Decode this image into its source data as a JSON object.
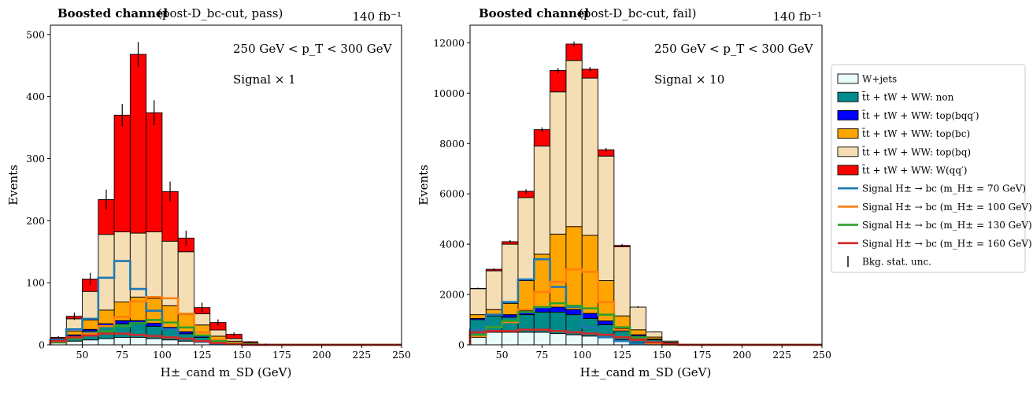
{
  "figure": {
    "colors": {
      "wjets": "#e9fbfb",
      "non": "#008b8b",
      "bqq": "#0000ff",
      "bc": "#ffa500",
      "bq": "#f5deb3",
      "wqq": "#ff0000",
      "sig70": "#1f77b4",
      "sig100": "#ff7f0e",
      "sig130": "#2ca02c",
      "sig160": "#d62728"
    },
    "legend": [
      {
        "key": "wjets",
        "label": "W+jets",
        "kind": "patch"
      },
      {
        "key": "non",
        "label": "t̄t + tW + WW: non",
        "kind": "patch"
      },
      {
        "key": "bqq",
        "label": "t̄t + tW + WW: top(bqq′)",
        "kind": "patch"
      },
      {
        "key": "bc",
        "label": "t̄t + tW + WW: top(bc)",
        "kind": "patch"
      },
      {
        "key": "bq",
        "label": "t̄t + tW + WW: top(bq)",
        "kind": "patch"
      },
      {
        "key": "wqq",
        "label": "t̄t + tW + WW: W(qq′)",
        "kind": "patch"
      },
      {
        "key": "sig70",
        "label": "Signal H± → bc (m_H± = 70 GeV)",
        "kind": "line"
      },
      {
        "key": "sig100",
        "label": "Signal H± → bc (m_H± = 100 GeV)",
        "kind": "line"
      },
      {
        "key": "sig130",
        "label": "Signal H± → bc (m_H± = 130 GeV)",
        "kind": "line"
      },
      {
        "key": "sig160",
        "label": "Signal H± → bc (m_H± = 160 GeV)",
        "kind": "line"
      },
      {
        "key": "unc",
        "label": "Bkg. stat. unc.",
        "kind": "errbar"
      }
    ]
  },
  "chart_data": [
    {
      "type": "bar",
      "stacked": true,
      "title_bold": "Boosted channel",
      "title_rest": "(post-D_bc-cut, pass)",
      "lumi": "140 fb⁻¹",
      "annotation_pt": "250 GeV < p_T < 300 GeV",
      "annotation_signal": "Signal × 1",
      "xlabel": "H±_cand m_SD (GeV)",
      "ylabel": "Events",
      "xlim": [
        30,
        250
      ],
      "ylim": [
        0,
        515
      ],
      "xticks": [
        50,
        75,
        100,
        125,
        150,
        175,
        200,
        225,
        250
      ],
      "yticks": [
        0,
        100,
        200,
        300,
        400,
        500
      ],
      "bin_edges": [
        30,
        40,
        50,
        60,
        70,
        80,
        90,
        100,
        110,
        120,
        130,
        140,
        150,
        160,
        170,
        180,
        190,
        200,
        210,
        220,
        230,
        240,
        250
      ],
      "background": [
        {
          "key": "wjets",
          "values": [
            3,
            6,
            8,
            10,
            12,
            12,
            10,
            8,
            6,
            4,
            2,
            1,
            0,
            0,
            0,
            0,
            0,
            0,
            0,
            0,
            0,
            0
          ]
        },
        {
          "key": "non",
          "values": [
            3,
            8,
            14,
            20,
            22,
            22,
            20,
            16,
            12,
            8,
            4,
            2,
            1,
            0,
            0,
            0,
            0,
            0,
            0,
            0,
            0,
            0
          ]
        },
        {
          "key": "bqq",
          "values": [
            1,
            2,
            3,
            4,
            5,
            5,
            5,
            4,
            3,
            2,
            1,
            0,
            0,
            0,
            0,
            0,
            0,
            0,
            0,
            0,
            0,
            0
          ]
        },
        {
          "key": "bc",
          "values": [
            1,
            6,
            15,
            22,
            30,
            38,
            40,
            35,
            28,
            18,
            7,
            3,
            1,
            0,
            0,
            0,
            0,
            0,
            0,
            0,
            0,
            0
          ]
        },
        {
          "key": "bq",
          "values": [
            2,
            20,
            46,
            122,
            113,
            103,
            107,
            104,
            101,
            18,
            10,
            4,
            1,
            0,
            0,
            0,
            0,
            0,
            0,
            0,
            0,
            0
          ]
        },
        {
          "key": "wqq",
          "values": [
            2,
            4,
            20,
            56,
            188,
            288,
            192,
            80,
            22,
            10,
            12,
            7,
            2,
            1,
            0,
            0,
            0,
            0,
            0,
            0,
            0,
            0
          ]
        }
      ],
      "errors": [
        2,
        6,
        10,
        16,
        18,
        20,
        20,
        16,
        12,
        8,
        5,
        3,
        1,
        1,
        0,
        0,
        0,
        0,
        0,
        0,
        0,
        0
      ],
      "signals": [
        {
          "key": "sig70",
          "values": [
            8,
            25,
            42,
            108,
            135,
            90,
            55,
            25,
            10,
            5,
            2,
            1,
            0,
            0,
            0,
            0,
            0,
            0,
            0,
            0,
            0,
            0
          ]
        },
        {
          "key": "sig100",
          "values": [
            4,
            12,
            18,
            30,
            45,
            70,
            77,
            75,
            50,
            20,
            8,
            3,
            1,
            0,
            0,
            0,
            0,
            0,
            0,
            0,
            0,
            0
          ]
        },
        {
          "key": "sig130",
          "values": [
            4,
            10,
            15,
            22,
            30,
            35,
            40,
            36,
            28,
            15,
            6,
            2,
            1,
            0,
            0,
            0,
            0,
            0,
            0,
            0,
            0,
            0
          ]
        },
        {
          "key": "sig160",
          "values": [
            6,
            12,
            15,
            18,
            18,
            16,
            14,
            12,
            10,
            6,
            3,
            1,
            0,
            0,
            0,
            0,
            0,
            0,
            0,
            0,
            0,
            0
          ]
        }
      ]
    },
    {
      "type": "bar",
      "stacked": true,
      "title_bold": "Boosted channel",
      "title_rest": "(post-D_bc-cut, fail)",
      "lumi": "140 fb⁻¹",
      "annotation_pt": "250 GeV < p_T < 300 GeV",
      "annotation_signal": "Signal × 10",
      "xlabel": "H±_cand m_SD (GeV)",
      "ylabel": "Events",
      "xlim": [
        30,
        250
      ],
      "ylim": [
        0,
        12700
      ],
      "xticks": [
        50,
        75,
        100,
        125,
        150,
        175,
        200,
        225,
        250
      ],
      "yticks": [
        0,
        2000,
        4000,
        6000,
        8000,
        10000,
        12000
      ],
      "bin_edges": [
        30,
        40,
        50,
        60,
        70,
        80,
        90,
        100,
        110,
        120,
        130,
        140,
        150,
        160,
        170,
        180,
        190,
        200,
        210,
        220,
        230,
        240,
        250
      ],
      "background": [
        {
          "key": "wjets",
          "values": [
            300,
            500,
            500,
            500,
            500,
            450,
            400,
            350,
            300,
            200,
            100,
            50,
            20,
            5,
            0,
            0,
            0,
            0,
            0,
            0,
            0,
            0
          ]
        },
        {
          "key": "non",
          "values": [
            700,
            650,
            600,
            700,
            800,
            850,
            800,
            700,
            500,
            350,
            250,
            150,
            50,
            10,
            0,
            0,
            0,
            0,
            0,
            0,
            0,
            0
          ]
        },
        {
          "key": "bqq",
          "values": [
            50,
            50,
            100,
            150,
            200,
            200,
            200,
            200,
            150,
            100,
            50,
            30,
            10,
            0,
            0,
            0,
            0,
            0,
            0,
            0,
            0,
            0
          ]
        },
        {
          "key": "bc",
          "values": [
            150,
            200,
            450,
            1200,
            2100,
            2900,
            3300,
            3100,
            1600,
            500,
            200,
            80,
            20,
            5,
            0,
            0,
            0,
            0,
            0,
            0,
            0,
            0
          ]
        },
        {
          "key": "bq",
          "values": [
            1030,
            1540,
            2350,
            3300,
            4300,
            5650,
            6600,
            6250,
            4950,
            2750,
            900,
            200,
            50,
            10,
            0,
            0,
            0,
            0,
            0,
            0,
            0,
            0
          ]
        },
        {
          "key": "wqq",
          "values": [
            10,
            60,
            100,
            250,
            650,
            850,
            650,
            350,
            250,
            50,
            0,
            0,
            0,
            0,
            0,
            0,
            0,
            0,
            0,
            0,
            0,
            0
          ]
        }
      ],
      "errors": [
        30,
        40,
        60,
        80,
        90,
        100,
        100,
        90,
        70,
        50,
        30,
        15,
        5,
        2,
        0,
        0,
        0,
        0,
        0,
        0,
        0,
        0
      ],
      "signals": [
        {
          "key": "sig70",
          "values": [
            600,
            1200,
            1700,
            2600,
            3400,
            2300,
            1500,
            700,
            300,
            150,
            60,
            20,
            5,
            0,
            0,
            0,
            0,
            0,
            0,
            0,
            0,
            0
          ]
        },
        {
          "key": "sig100",
          "values": [
            350,
            700,
            900,
            1400,
            2100,
            2500,
            3000,
            2900,
            1700,
            600,
            200,
            60,
            10,
            0,
            0,
            0,
            0,
            0,
            0,
            0,
            0,
            0
          ]
        },
        {
          "key": "sig130",
          "values": [
            400,
            700,
            950,
            1300,
            1500,
            1650,
            1550,
            1450,
            1200,
            700,
            300,
            100,
            20,
            0,
            0,
            0,
            0,
            0,
            0,
            0,
            0,
            0
          ]
        },
        {
          "key": "sig160",
          "values": [
            500,
            550,
            550,
            600,
            600,
            550,
            500,
            450,
            400,
            300,
            200,
            100,
            30,
            0,
            0,
            0,
            0,
            0,
            0,
            0,
            0,
            0
          ]
        }
      ]
    }
  ]
}
